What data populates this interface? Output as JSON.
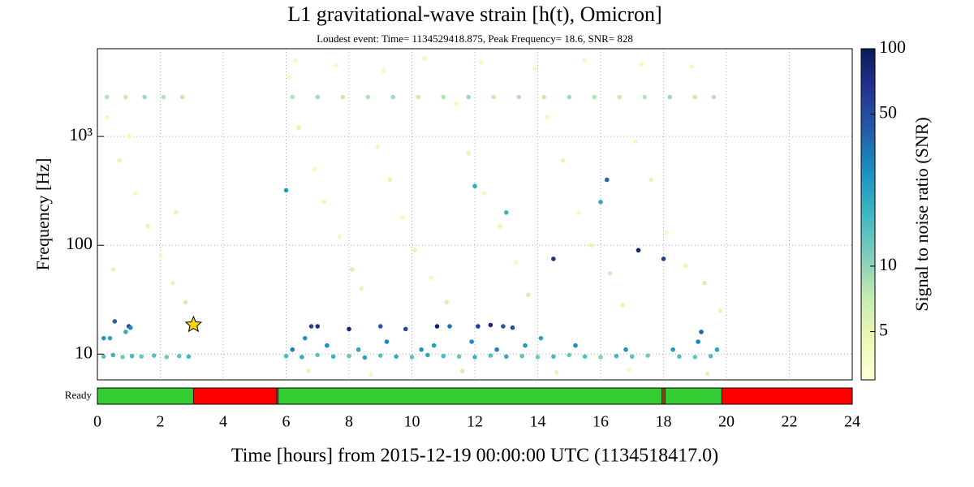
{
  "chart_data": {
    "type": "scatter",
    "title": "L1 gravitational-wave strain [h(t), Omicron]",
    "subtitle": "Loudest event: Time= 1134529418.875, Peak Frequency= 18.6, SNR= 828",
    "xlabel": "Time [hours] from 2015-12-19 00:00:00 UTC (1134518417.0)",
    "ylabel": "Frequency [Hz]",
    "xlim": [
      0,
      24
    ],
    "xticks": [
      0,
      2,
      4,
      6,
      8,
      10,
      12,
      14,
      16,
      18,
      20,
      22,
      24
    ],
    "ylim": [
      5.8,
      6400
    ],
    "yscale": "log",
    "yticks": [
      10,
      100,
      {
        "value": 1000,
        "label": "10³"
      }
    ],
    "grid": true,
    "colorbar": {
      "label": "Signal to noise ratio (SNR)",
      "clim": [
        3,
        100
      ],
      "scale": "log",
      "ticks": [
        5,
        10,
        50,
        100
      ],
      "colormap": [
        "#ffffd9",
        "#edf8b1",
        "#c7e9b4",
        "#7fcdbb",
        "#41b6c4",
        "#1d91c0",
        "#225ea8",
        "#253494",
        "#081d58"
      ]
    },
    "points": {
      "x": [
        0.2,
        0.5,
        0.8,
        1.1,
        1.4,
        1.8,
        2.2,
        2.6,
        2.9,
        6.0,
        6.5,
        7.0,
        7.5,
        8.0,
        8.5,
        9.0,
        9.5,
        10.0,
        10.5,
        11.0,
        11.5,
        12.0,
        12.5,
        13.0,
        13.5,
        14.0,
        14.5,
        15.0,
        15.5,
        16.0,
        16.5,
        17.0,
        17.5,
        18.5,
        19.0,
        19.5,
        0.3,
        0.9,
        1.5,
        2.1,
        2.7,
        6.2,
        7.0,
        7.8,
        8.6,
        9.4,
        10.2,
        11.0,
        11.8,
        12.6,
        13.4,
        14.2,
        15.0,
        15.8,
        16.6,
        17.4,
        18.2,
        19.0,
        19.6,
        0.3,
        0.7,
        1.2,
        1.6,
        2.0,
        2.4,
        2.8,
        1.0,
        2.5,
        0.5,
        6.1,
        6.4,
        6.9,
        7.2,
        7.7,
        8.1,
        8.4,
        8.9,
        9.3,
        9.7,
        10.1,
        10.6,
        11.1,
        11.4,
        11.8,
        12.3,
        12.8,
        13.3,
        13.7,
        14.3,
        14.8,
        15.3,
        15.7,
        16.3,
        16.7,
        17.1,
        17.6,
        18.1,
        18.7,
        19.3,
        19.8,
        6.3,
        7.6,
        9.1,
        10.4,
        12.2,
        13.9,
        15.5,
        17.3,
        18.9,
        6.7,
        8.7,
        11.6,
        14.6,
        16.9,
        19.4,
        0.2,
        0.4,
        0.9,
        6.2,
        6.6,
        7.3,
        8.3,
        9.2,
        10.3,
        10.7,
        11.9,
        12.7,
        13.6,
        14.1,
        15.2,
        16.8,
        18.3,
        19.1,
        19.7,
        6.0,
        12.0,
        16.0,
        13.0,
        0.55,
        1.0,
        1.05,
        6.8,
        7.0,
        8.0,
        9.0,
        9.8,
        10.8,
        11.2,
        12.1,
        12.5,
        12.9,
        13.2,
        19.2,
        14.5,
        17.2,
        18.0,
        16.2
      ],
      "y": [
        9.5,
        9.8,
        9.4,
        9.6,
        9.5,
        9.7,
        9.4,
        9.6,
        9.5,
        9.6,
        9.4,
        9.8,
        9.5,
        9.6,
        9.3,
        9.7,
        9.5,
        9.4,
        9.8,
        9.6,
        9.5,
        9.4,
        9.7,
        9.5,
        9.6,
        9.4,
        9.5,
        9.8,
        9.5,
        9.4,
        9.6,
        9.5,
        9.7,
        9.5,
        9.4,
        9.6,
        2300,
        2300,
        2300,
        2300,
        2300,
        2300,
        2300,
        2300,
        2300,
        2300,
        2300,
        2300,
        2300,
        2300,
        2300,
        2300,
        2300,
        2300,
        2300,
        2300,
        2300,
        2300,
        2300,
        1500,
        600,
        300,
        150,
        80,
        45,
        30,
        1000,
        200,
        60,
        3500,
        1200,
        500,
        250,
        120,
        60,
        40,
        800,
        400,
        180,
        90,
        50,
        30,
        2000,
        700,
        300,
        150,
        70,
        35,
        1500,
        600,
        200,
        100,
        55,
        28,
        900,
        400,
        130,
        65,
        45,
        25,
        5000,
        4500,
        4000,
        5200,
        4800,
        4200,
        5000,
        4600,
        4400,
        7,
        6.5,
        7,
        6.8,
        7.2,
        6.6,
        14,
        14,
        16,
        11,
        14,
        12,
        11,
        13,
        11,
        12,
        13,
        11,
        12,
        14,
        12,
        11,
        11,
        13,
        11,
        320,
        350,
        250,
        200,
        20,
        18,
        17.5,
        18,
        18,
        17,
        18,
        17,
        18,
        18,
        18,
        18.5,
        18,
        17.5,
        16,
        75,
        90,
        75,
        400
      ],
      "snr": [
        14,
        18,
        12,
        16,
        13,
        15,
        12,
        14,
        17,
        16,
        20,
        14,
        18,
        13,
        22,
        15,
        19,
        14,
        21,
        16,
        13,
        18,
        15,
        20,
        14,
        12,
        16,
        13,
        15,
        11,
        17,
        14,
        12,
        15,
        13,
        16,
        8,
        7,
        9,
        8,
        7,
        8,
        9,
        7,
        8,
        9,
        7,
        8,
        9,
        7,
        8,
        7,
        9,
        8,
        7,
        8,
        9,
        7,
        8,
        4,
        5,
        4,
        5,
        4,
        5,
        6,
        4,
        5,
        5,
        4,
        5,
        4,
        5,
        4,
        6,
        5,
        4,
        5,
        4,
        5,
        4,
        6,
        4,
        5,
        4,
        5,
        4,
        6,
        4,
        5,
        4,
        5,
        6,
        5,
        4,
        5,
        4,
        5,
        6,
        5,
        4,
        4,
        4,
        4,
        4,
        4,
        4,
        4,
        4,
        5,
        4,
        6,
        5,
        4,
        5,
        25,
        22,
        20,
        30,
        25,
        28,
        22,
        30,
        26,
        24,
        28,
        30,
        25,
        22,
        28,
        26,
        24,
        30,
        22,
        25,
        20,
        20,
        18,
        40,
        60,
        30,
        55,
        70,
        80,
        45,
        50,
        90,
        35,
        60,
        80,
        45,
        50,
        40,
        70,
        85,
        60,
        40
      ]
    },
    "highlight": {
      "x": 3.056,
      "y": 18.6,
      "color": "#ffd700"
    },
    "segments": {
      "label": "Ready",
      "start": [
        0,
        3.056,
        5.7,
        5.75,
        17.95,
        18.05,
        19.85
      ],
      "end": [
        3.056,
        5.7,
        5.75,
        17.95,
        18.05,
        19.85,
        24
      ],
      "colors": [
        "#33cc33",
        "#ff0000",
        "#556b2f",
        "#33cc33",
        "#8b4513",
        "#33cc33",
        "#ff0000"
      ]
    }
  }
}
